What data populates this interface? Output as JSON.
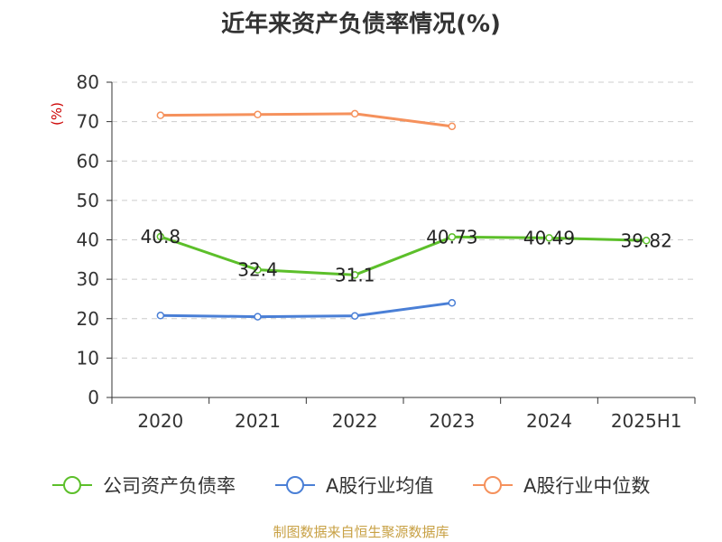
{
  "chart_data": {
    "type": "line",
    "title": "近年来资产负债率情况(%)",
    "ylabel": "(%)",
    "xlabel": "",
    "categories": [
      "2020",
      "2021",
      "2022",
      "2023",
      "2024",
      "2025H1"
    ],
    "ylim": [
      0,
      80
    ],
    "yticks": [
      0,
      10,
      20,
      30,
      40,
      50,
      60,
      70,
      80
    ],
    "grid": true,
    "legend_position": "bottom",
    "series": [
      {
        "name": "公司资产负债率",
        "color": "#5cbf2a",
        "values": [
          40.8,
          32.4,
          31.1,
          40.73,
          40.49,
          39.82
        ],
        "labels": [
          "40.8",
          "32.4",
          "31.1",
          "40.73",
          "40.49",
          "39.82"
        ]
      },
      {
        "name": "A股行业均值",
        "color": "#4a7fd6",
        "values": [
          20.8,
          20.5,
          20.7,
          24.0,
          null,
          null
        ],
        "labels": null
      },
      {
        "name": "A股行业中位数",
        "color": "#f5915c",
        "values": [
          71.6,
          71.8,
          72.0,
          68.8,
          null,
          null
        ],
        "labels": null
      }
    ]
  },
  "source": "制图数据来自恒生聚源数据库"
}
